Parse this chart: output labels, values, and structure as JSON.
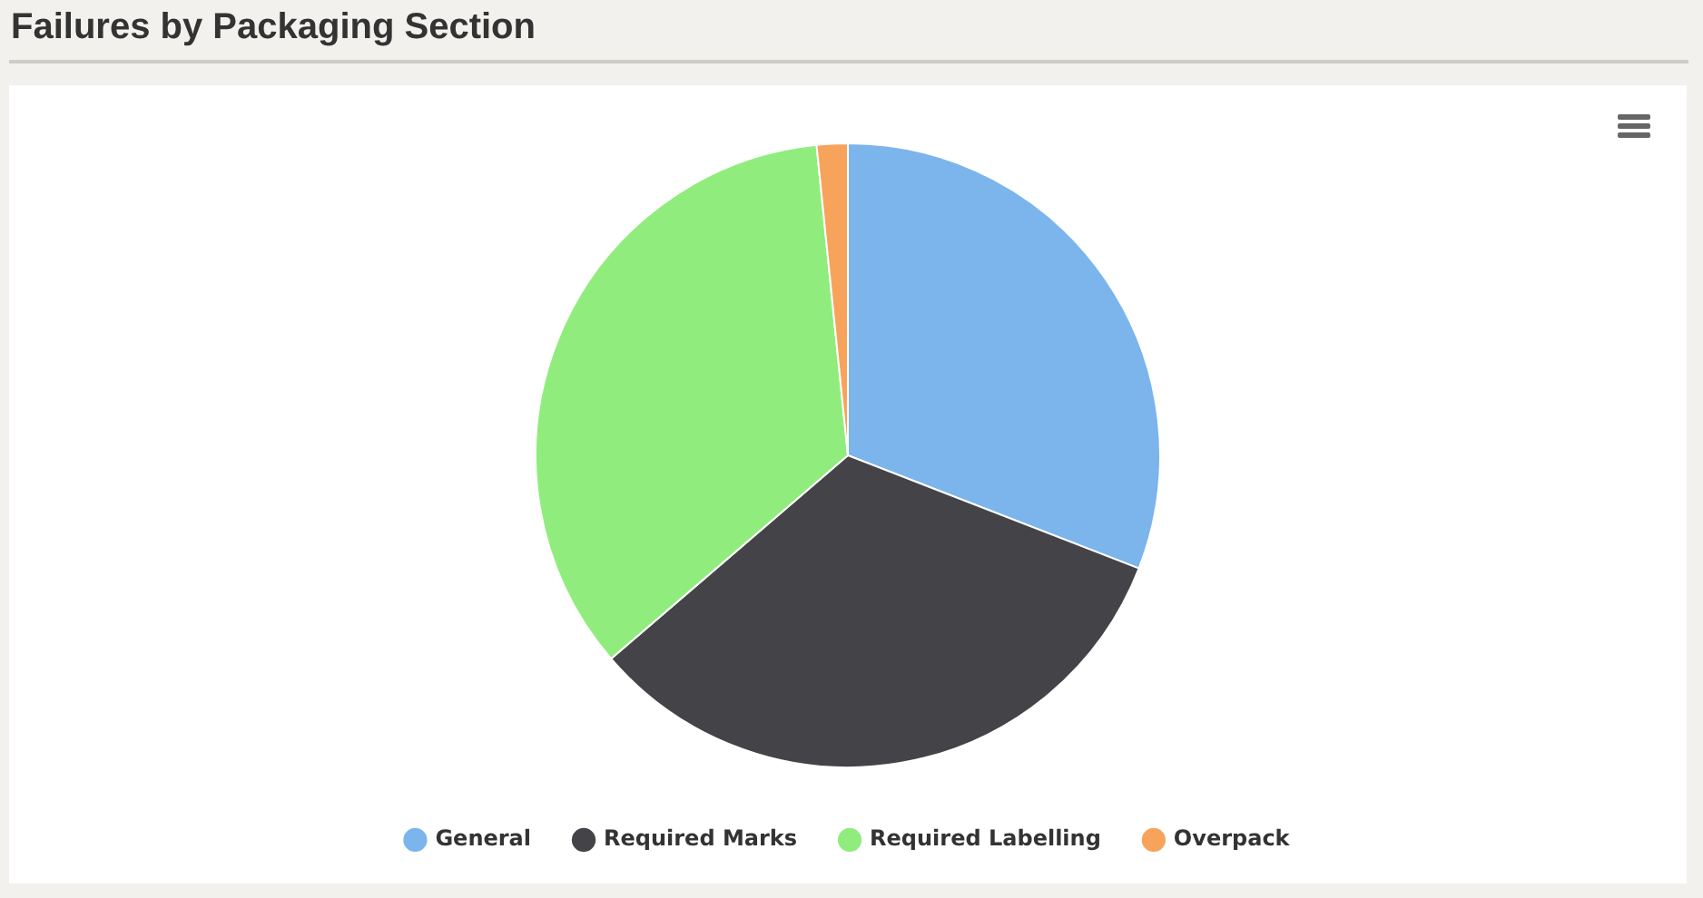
{
  "chart_data": {
    "type": "pie",
    "title": "Failures by Packaging Section",
    "categories": [
      "General",
      "Required Marks",
      "Required Labelling",
      "Overpack"
    ],
    "values": [
      30.9,
      32.8,
      34.7,
      1.6
    ],
    "colors": [
      "#7cb5ec",
      "#434348",
      "#90ed7d",
      "#f7a35c"
    ],
    "legend": "bottom"
  }
}
